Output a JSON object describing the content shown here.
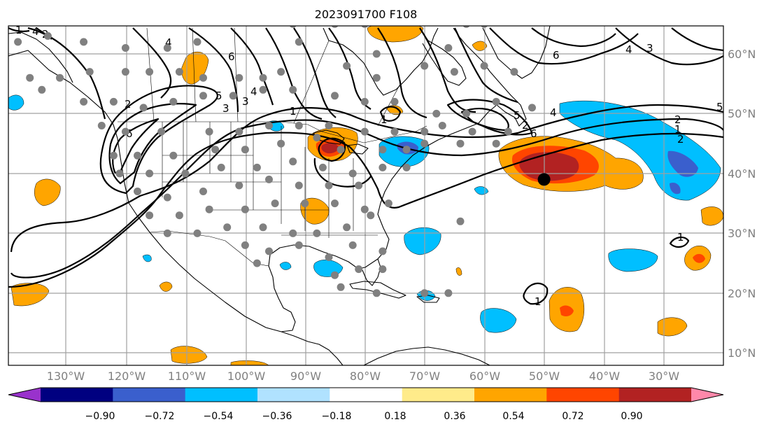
{
  "title": "2023091700 F108",
  "lon_ticks": [
    "130°W",
    "120°W",
    "110°W",
    "100°W",
    "90°W",
    "80°W",
    "70°W",
    "60°W",
    "50°W",
    "40°W",
    "30°W"
  ],
  "lat_ticks": [
    "60°N",
    "50°N",
    "40°N",
    "30°N",
    "20°N",
    "10°N"
  ],
  "colorbar": {
    "colors": [
      "#9932cc",
      "#000080",
      "#3a5fcd",
      "#00bfff",
      "#b0e2ff",
      "#ffffff",
      "#ffeb8a",
      "#ffa500",
      "#ff4500",
      "#b22222",
      "#ff88aa"
    ],
    "labels": [
      "−0.90",
      "−0.72",
      "−0.54",
      "−0.36",
      "−0.18",
      "0.18",
      "0.36",
      "0.54",
      "0.72",
      "0.90"
    ]
  },
  "contour_labels": [
    "1",
    "2",
    "3",
    "4",
    "5",
    "6",
    "1",
    "2",
    "3",
    "4",
    "5",
    "6",
    "1",
    "2",
    "4",
    "5",
    "6",
    "1",
    "2",
    "4",
    "1",
    "1",
    "6",
    "2",
    "3",
    "4"
  ],
  "marker": {
    "lon": -50,
    "lat": 39,
    "color": "#000000"
  },
  "stations": [
    [
      -138,
      62
    ],
    [
      -133,
      63
    ],
    [
      -127,
      62
    ],
    [
      -120,
      61
    ],
    [
      -113,
      61
    ],
    [
      -108,
      62
    ],
    [
      -92,
      65
    ],
    [
      -91,
      62
    ],
    [
      -85,
      65
    ],
    [
      -80,
      65
    ],
    [
      -78,
      60
    ],
    [
      -66,
      61
    ],
    [
      -63,
      65
    ],
    [
      -60,
      65
    ],
    [
      -136,
      56
    ],
    [
      -134,
      54
    ],
    [
      -131,
      56
    ],
    [
      -126,
      57
    ],
    [
      -120,
      57
    ],
    [
      -116,
      57
    ],
    [
      -111,
      57
    ],
    [
      -107,
      56
    ],
    [
      -101,
      56
    ],
    [
      -97,
      56
    ],
    [
      -94,
      57
    ],
    [
      -83,
      58
    ],
    [
      -78,
      56
    ],
    [
      -70,
      58
    ],
    [
      -65,
      57
    ],
    [
      -60,
      58
    ],
    [
      -55,
      57
    ],
    [
      -127,
      52
    ],
    [
      -122,
      52
    ],
    [
      -117,
      51
    ],
    [
      -112,
      52
    ],
    [
      -107,
      53
    ],
    [
      -102,
      53
    ],
    [
      -97,
      54
    ],
    [
      -92,
      54
    ],
    [
      -85,
      53
    ],
    [
      -80,
      52
    ],
    [
      -75,
      52
    ],
    [
      -68,
      50
    ],
    [
      -63,
      50
    ],
    [
      -58,
      52
    ],
    [
      -52,
      51
    ],
    [
      -124,
      48
    ],
    [
      -120,
      47
    ],
    [
      -114,
      47
    ],
    [
      -106,
      47
    ],
    [
      -101,
      47
    ],
    [
      -96,
      48
    ],
    [
      -91,
      48
    ],
    [
      -86,
      48
    ],
    [
      -80,
      47
    ],
    [
      -75,
      47
    ],
    [
      -70,
      47
    ],
    [
      -67,
      48
    ],
    [
      -62,
      47
    ],
    [
      -56,
      47
    ],
    [
      -122,
      43
    ],
    [
      -118,
      43
    ],
    [
      -112,
      43
    ],
    [
      -105,
      44
    ],
    [
      -100,
      44
    ],
    [
      -94,
      45
    ],
    [
      -88,
      46
    ],
    [
      -84,
      44
    ],
    [
      -77,
      44
    ],
    [
      -73,
      44
    ],
    [
      -70,
      45
    ],
    [
      -64,
      45
    ],
    [
      -58,
      45
    ],
    [
      -121,
      40
    ],
    [
      -116,
      40
    ],
    [
      -110,
      40
    ],
    [
      -104,
      41
    ],
    [
      -98,
      41
    ],
    [
      -92,
      42
    ],
    [
      -87,
      41
    ],
    [
      -82,
      40
    ],
    [
      -77,
      41
    ],
    [
      -73,
      41
    ],
    [
      -118,
      37
    ],
    [
      -113,
      36
    ],
    [
      -107,
      37
    ],
    [
      -101,
      38
    ],
    [
      -96,
      39
    ],
    [
      -91,
      38
    ],
    [
      -86,
      38
    ],
    [
      -81,
      38
    ],
    [
      -116,
      33
    ],
    [
      -111,
      33
    ],
    [
      -106,
      34
    ],
    [
      -100,
      34
    ],
    [
      -95,
      35
    ],
    [
      -90,
      35
    ],
    [
      -85,
      35
    ],
    [
      -80,
      34
    ],
    [
      -76,
      35
    ],
    [
      -113,
      30
    ],
    [
      -108,
      30
    ],
    [
      -103,
      31
    ],
    [
      -97,
      31
    ],
    [
      -92,
      30
    ],
    [
      -88,
      30
    ],
    [
      -83,
      31
    ],
    [
      -79,
      33
    ],
    [
      -100,
      28
    ],
    [
      -96,
      27
    ],
    [
      -91,
      28
    ],
    [
      -86,
      26
    ],
    [
      -82,
      28
    ],
    [
      -77,
      27
    ],
    [
      -98,
      25
    ],
    [
      -85,
      23
    ],
    [
      -81,
      24
    ],
    [
      -77,
      24
    ],
    [
      -84,
      21
    ],
    [
      -78,
      20
    ],
    [
      -70,
      20
    ],
    [
      -66,
      20
    ],
    [
      -64,
      32
    ]
  ]
}
